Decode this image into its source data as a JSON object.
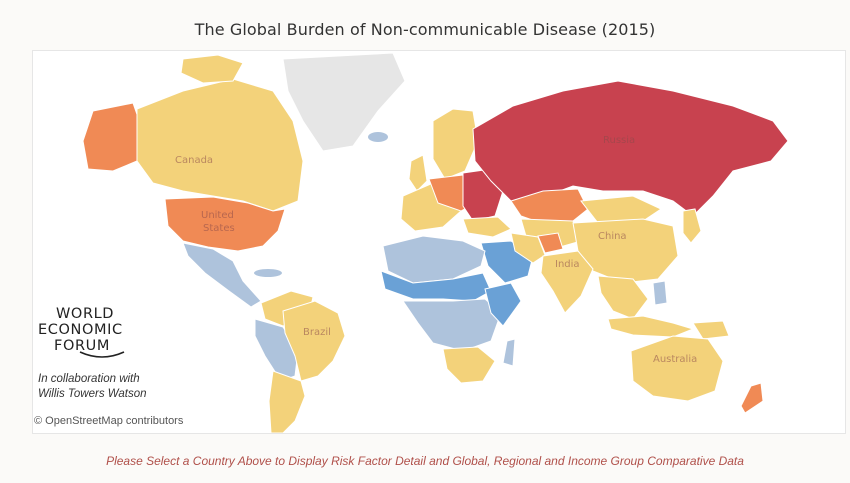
{
  "title": "The Global Burden of Non-communicable Disease (2015)",
  "logo": {
    "lines": [
      "WORLD",
      "ECONOMIC",
      "FORUM"
    ],
    "name": "World Economic Forum logo"
  },
  "collaboration": {
    "line1": "In collaboration with",
    "line2": "Willis Towers Watson"
  },
  "attribution": "© OpenStreetMap contributors",
  "footnote": "Please Select a Country Above to Display Risk Factor Detail and Global, Regional and Income Group Comparative Data",
  "map_labels": {
    "canada": "Canada",
    "united_states_1": "United",
    "united_states_2": "States",
    "russia": "Russia",
    "china": "China",
    "india": "India",
    "brazil": "Brazil",
    "australia": "Australia"
  },
  "colors": {
    "highest": "#c8424f",
    "high": "#f08a55",
    "medium": "#f3d27a",
    "low_medium": "#aec3dc",
    "low": "#6aa1d6",
    "no_data": "#e6e6e6",
    "footnote": "#b0504a"
  }
}
